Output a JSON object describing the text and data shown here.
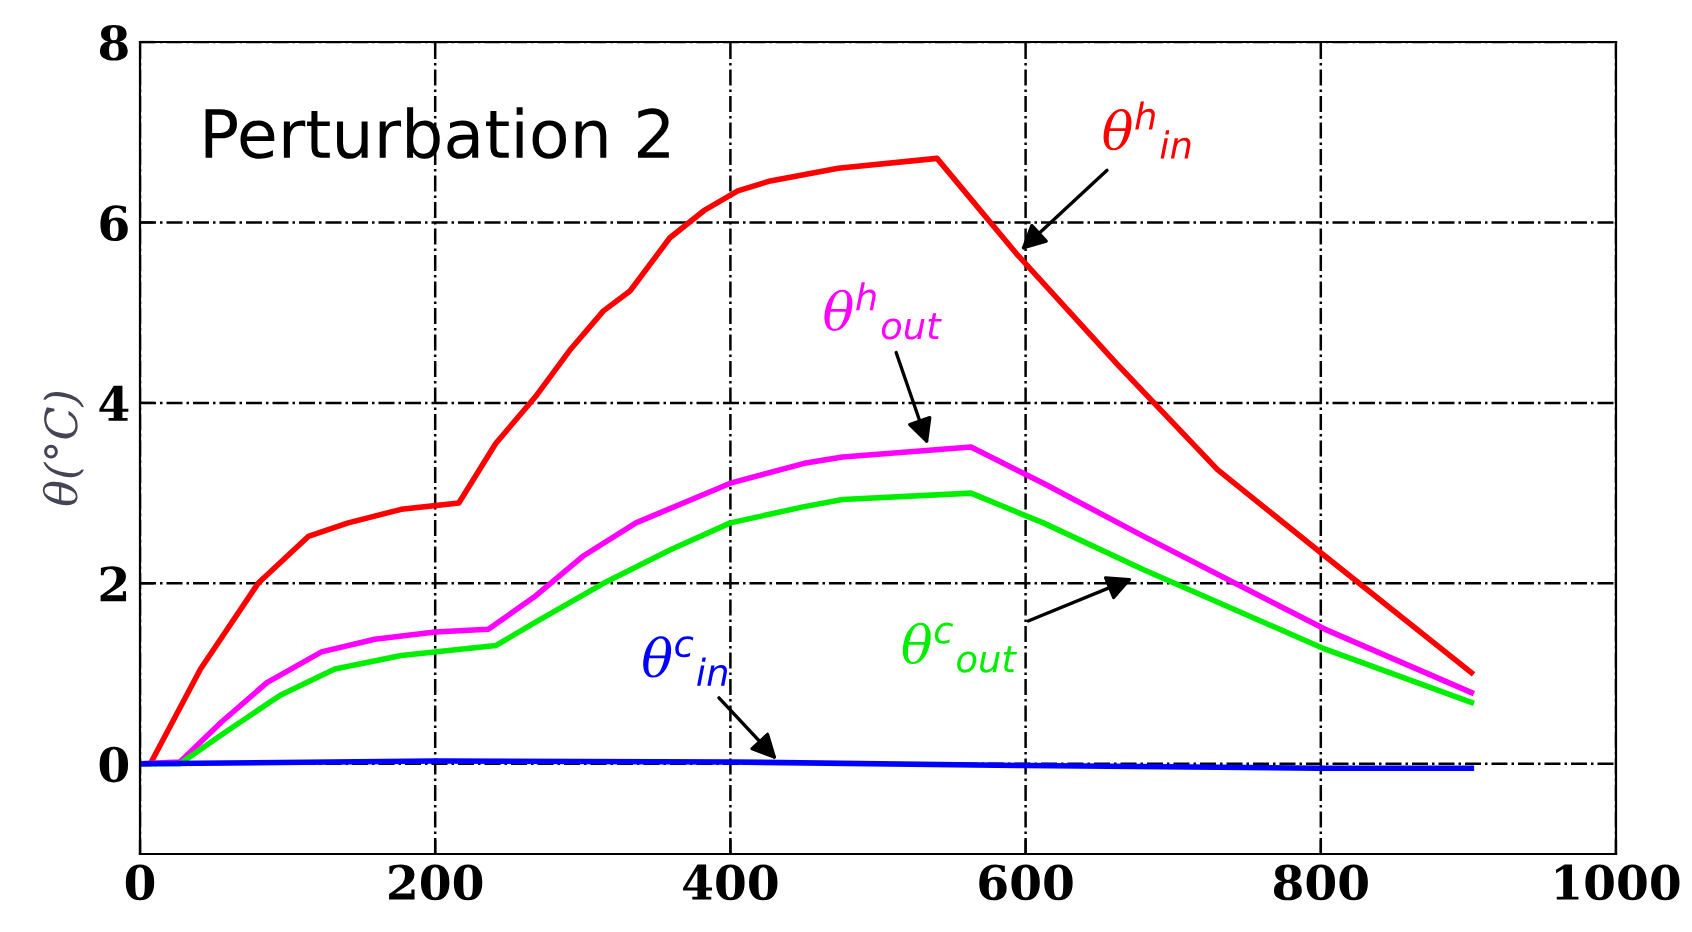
{
  "chart_data": {
    "type": "line",
    "ylabel": "θ(°C)",
    "annotations": [
      "Perturbation 2"
    ],
    "xlim": [
      0,
      1000
    ],
    "xticks": [
      0,
      200,
      400,
      600,
      800,
      1000
    ],
    "ylim": [
      -1,
      8
    ],
    "yticks": [
      0,
      2,
      4,
      6,
      8
    ],
    "grid": true,
    "legend": false,
    "marker": "none",
    "line_style": "solid",
    "series": [
      {
        "name": "θ$^{h}$$_{in}$",
        "color": "#ff0000",
        "x": [
          0,
          7,
          41,
          80,
          114,
          141,
          177,
          216,
          241,
          268,
          291,
          314,
          332,
          359,
          382,
          405,
          427,
          473,
          540,
          594,
          662,
          730,
          803,
          902
        ],
        "values": [
          0,
          0,
          1.05,
          2.0,
          2.52,
          2.67,
          2.82,
          2.89,
          3.55,
          4.07,
          4.58,
          5.02,
          5.24,
          5.83,
          6.13,
          6.35,
          6.46,
          6.6,
          6.71,
          5.65,
          4.43,
          3.26,
          2.3,
          1.01
        ]
      },
      {
        "name": "θ$^{h}$$_{out}$",
        "color": "#ff00ff",
        "x": [
          0,
          27,
          55,
          86,
          123,
          159,
          200,
          236,
          268,
          300,
          336,
          400,
          450,
          476,
          563,
          612,
          680,
          803,
          902
        ],
        "values": [
          0,
          0.02,
          0.46,
          0.9,
          1.24,
          1.38,
          1.46,
          1.49,
          1.86,
          2.3,
          2.67,
          3.11,
          3.33,
          3.4,
          3.51,
          3.11,
          2.52,
          1.49,
          0.79
        ]
      },
      {
        "name": "θ$^{c}$$_{out}$",
        "color": "#00ee00",
        "x": [
          0,
          27,
          55,
          95,
          132,
          177,
          241,
          268,
          314,
          359,
          400,
          450,
          476,
          563,
          612,
          680,
          803,
          902
        ],
        "values": [
          0,
          0,
          0.32,
          0.76,
          1.05,
          1.2,
          1.31,
          1.57,
          2.0,
          2.37,
          2.67,
          2.85,
          2.93,
          3.0,
          2.67,
          2.15,
          1.27,
          0.68
        ]
      },
      {
        "name": "θ$^{c}$$_{in}$",
        "color": "#0000ff",
        "x": [
          0,
          200,
          400,
          600,
          800,
          902
        ],
        "values": [
          0,
          0.03,
          0.02,
          -0.02,
          -0.05,
          -0.05
        ]
      }
    ]
  }
}
